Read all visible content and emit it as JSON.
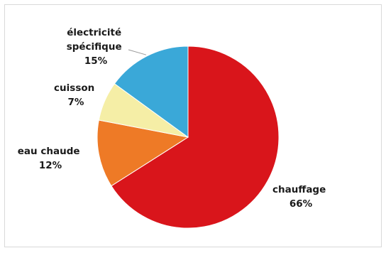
{
  "chart_data": {
    "type": "pie",
    "title": "",
    "categories": [
      "chauffage",
      "eau chaude",
      "cuisson",
      "électricité spécifique"
    ],
    "values": [
      66,
      12,
      7,
      15
    ],
    "value_labels": [
      "66%",
      "12%",
      "7%",
      "15%"
    ],
    "colors": [
      "#d9151b",
      "#ee7a26",
      "#f5eea6",
      "#3aa8d8"
    ],
    "start": "12 o'clock",
    "direction": "clockwise",
    "legend": "none",
    "label_lines": [
      [
        "chauffage"
      ],
      [
        "eau chaude"
      ],
      [
        "cuisson"
      ],
      [
        "électricité",
        "spécifique"
      ]
    ]
  }
}
